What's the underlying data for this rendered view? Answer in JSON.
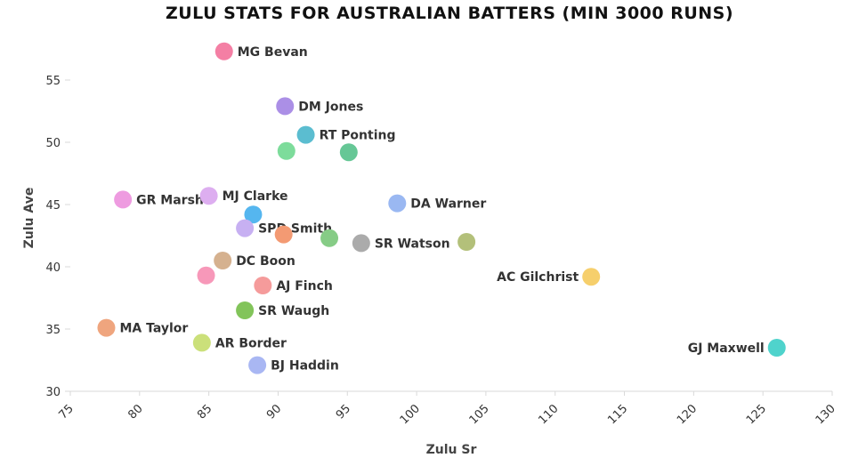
{
  "chart_data": {
    "type": "scatter",
    "title": "ZULU STATS FOR AUSTRALIAN BATTERS (MIN 3000 RUNS)",
    "xlabel": "Zulu Sr",
    "ylabel": "Zulu Ave",
    "xlim": [
      75,
      130
    ],
    "ylim": [
      30,
      58
    ],
    "xticks": [
      75,
      80,
      85,
      90,
      95,
      100,
      105,
      110,
      115,
      120,
      125,
      130
    ],
    "yticks": [
      30,
      35,
      40,
      45,
      50,
      55
    ],
    "grid": false,
    "points": [
      {
        "label": "MG Bevan",
        "x": 86.1,
        "y": 57.3,
        "color": "#f47fa4"
      },
      {
        "label": "DM Jones",
        "x": 90.5,
        "y": 52.9,
        "color": "#ab8fe6"
      },
      {
        "label": "RT Ponting",
        "x": 92.0,
        "y": 50.6,
        "color": "#5bbdd0"
      },
      {
        "label": "",
        "x": 90.6,
        "y": 49.3,
        "color": "#7ddc9b"
      },
      {
        "label": "",
        "x": 95.1,
        "y": 49.2,
        "color": "#66c796"
      },
      {
        "label": "GR Marsh",
        "x": 78.8,
        "y": 45.4,
        "color": "#ee9be0"
      },
      {
        "label": "MJ Clarke",
        "x": 85.0,
        "y": 45.7,
        "color": "#ddaef0"
      },
      {
        "label": "",
        "x": 88.2,
        "y": 44.2,
        "color": "#55b6ef"
      },
      {
        "label": "DA Warner",
        "x": 98.6,
        "y": 45.1,
        "color": "#9ab8f2"
      },
      {
        "label": "SPD Smith",
        "x": 87.6,
        "y": 43.1,
        "color": "#c7b0f2"
      },
      {
        "label": "",
        "x": 90.4,
        "y": 42.6,
        "color": "#f39a73"
      },
      {
        "label": "",
        "x": 93.7,
        "y": 42.3,
        "color": "#86cc86"
      },
      {
        "label": "SR Watson",
        "x": 96.0,
        "y": 41.9,
        "color": "#ababab"
      },
      {
        "label": "",
        "x": 103.6,
        "y": 42.0,
        "color": "#b3c07a"
      },
      {
        "label": "DC Boon",
        "x": 86.0,
        "y": 40.5,
        "color": "#d5b18f"
      },
      {
        "label": "",
        "x": 84.8,
        "y": 39.3,
        "color": "#f798b9"
      },
      {
        "label": "AJ Finch",
        "x": 88.9,
        "y": 38.5,
        "color": "#f59b9b"
      },
      {
        "label": "AC Gilchrist",
        "x": 112.6,
        "y": 39.2,
        "color": "#f6cf6c"
      },
      {
        "label": "SR Waugh",
        "x": 87.6,
        "y": 36.5,
        "color": "#82c45a"
      },
      {
        "label": "MA Taylor",
        "x": 77.6,
        "y": 35.1,
        "color": "#efa57e"
      },
      {
        "label": "AR Border",
        "x": 84.5,
        "y": 33.9,
        "color": "#cbe07a"
      },
      {
        "label": "BJ Haddin",
        "x": 88.5,
        "y": 32.1,
        "color": "#a9b7f3"
      },
      {
        "label": "GJ Maxwell",
        "x": 126.0,
        "y": 33.5,
        "color": "#4fd3cc"
      }
    ]
  }
}
